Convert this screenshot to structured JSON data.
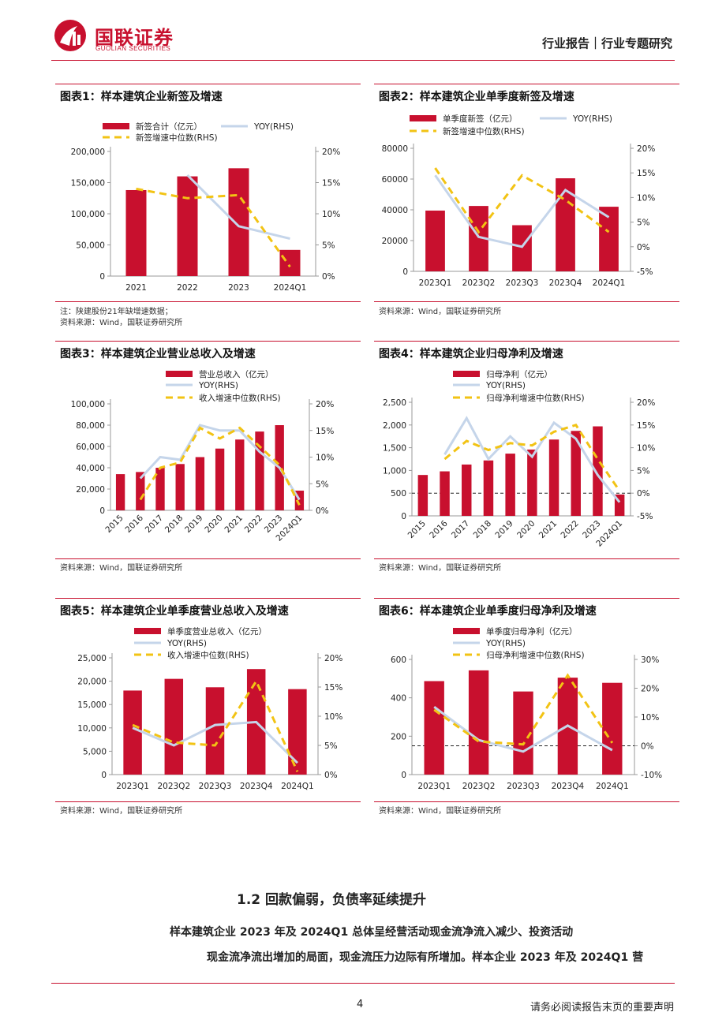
{
  "header": {
    "company_cn": "国联证券",
    "company_en": "GUOLIAN SECURITIES",
    "report_type": "行业报告｜行业专题研究",
    "colors": {
      "brand_red": "#c8102e"
    }
  },
  "charts": [
    {
      "id": "chart1",
      "title": "图表1：样本建筑企业新签及增速",
      "notes": [
        "注：陕建股份21年缺增速数据；",
        "资料来源：Wind，国联证券研究所"
      ]
    },
    {
      "id": "chart2",
      "title": "图表2：样本建筑企业单季度新签及增速",
      "notes": [
        "资料来源：Wind，国联证券研究所"
      ]
    },
    {
      "id": "chart3",
      "title": "图表3：样本建筑企业营业总收入及增速",
      "notes": [
        "资料来源：Wind，国联证券研究所"
      ]
    },
    {
      "id": "chart4",
      "title": "图表4：样本建筑企业归母净利及增速",
      "notes": [
        "资料来源：Wind，国联证券研究所"
      ]
    },
    {
      "id": "chart5",
      "title": "图表5：样本建筑企业单季度营业总收入及增速",
      "notes": [
        "资料来源：Wind，国联证券研究所"
      ]
    },
    {
      "id": "chart6",
      "title": "图表6：样本建筑企业单季度归母净利及增速",
      "notes": [
        "资料来源：Wind，国联证券研究所"
      ]
    }
  ],
  "chart_data": [
    {
      "type": "bar",
      "title": "图表1：样本建筑企业新签及增速",
      "categories": [
        "2021",
        "2022",
        "2023",
        "2024Q1"
      ],
      "left_ticks": [
        "0",
        "50,000",
        "100,000",
        "150,000",
        "200,000"
      ],
      "right_ticks": [
        "0%",
        "5%",
        "10%",
        "15%",
        "20%"
      ],
      "ylim": [
        0,
        200000
      ],
      "y2lim": [
        0,
        20
      ],
      "series": [
        {
          "name": "新签合计（亿元）",
          "kind": "bar",
          "axis": "left",
          "values": [
            138000,
            160000,
            173000,
            42000
          ]
        },
        {
          "name": "YOY(RHS)",
          "kind": "line",
          "axis": "right",
          "values": [
            null,
            16.2,
            8.0,
            6.0
          ]
        },
        {
          "name": "新签增速中位数(RHS)",
          "kind": "dash",
          "axis": "right",
          "values": [
            14.0,
            12.5,
            13.0,
            1.5
          ]
        }
      ]
    },
    {
      "type": "bar",
      "title": "图表2：样本建筑企业单季度新签及增速",
      "categories": [
        "2023Q1",
        "2023Q2",
        "2023Q3",
        "2023Q4",
        "2024Q1"
      ],
      "left_ticks": [
        "0",
        "20000",
        "40000",
        "60000",
        "80000"
      ],
      "right_ticks": [
        "-5%",
        "0%",
        "5%",
        "10%",
        "15%",
        "20%"
      ],
      "ylim": [
        0,
        80000
      ],
      "y2lim": [
        -5,
        20
      ],
      "series": [
        {
          "name": "单季度新签（亿元）",
          "kind": "bar",
          "axis": "left",
          "values": [
            39500,
            42500,
            30000,
            60500,
            42000
          ]
        },
        {
          "name": "YOY(RHS)",
          "kind": "line",
          "axis": "right",
          "values": [
            14.5,
            2.0,
            0.0,
            11.5,
            6.0
          ]
        },
        {
          "name": "新签增速中位数(RHS)",
          "kind": "dash",
          "axis": "right",
          "values": [
            16.0,
            3.0,
            14.5,
            9.5,
            3.0
          ]
        }
      ]
    },
    {
      "type": "bar",
      "title": "图表3：样本建筑企业营业总收入及增速",
      "categories": [
        "2015",
        "2016",
        "2017",
        "2018",
        "2019",
        "2020",
        "2021",
        "2022",
        "2023",
        "2024Q1"
      ],
      "left_ticks": [
        "0",
        "20,000",
        "40,000",
        "60,000",
        "80,000",
        "100,000"
      ],
      "right_ticks": [
        "0%",
        "5%",
        "10%",
        "15%",
        "20%"
      ],
      "ylim": [
        0,
        100000
      ],
      "y2lim": [
        0,
        20
      ],
      "series": [
        {
          "name": "营业总收入（亿元）",
          "kind": "bar",
          "axis": "left",
          "values": [
            34000,
            36000,
            40000,
            43500,
            50000,
            58000,
            66500,
            74000,
            80000,
            18500
          ]
        },
        {
          "name": "YOY(RHS)",
          "kind": "line",
          "axis": "right",
          "values": [
            null,
            6.0,
            10.0,
            9.5,
            16.0,
            15.0,
            15.0,
            11.0,
            8.0,
            2.0
          ]
        },
        {
          "name": "收入增速中位数(RHS)",
          "kind": "dash",
          "axis": "right",
          "values": [
            null,
            2.0,
            8.0,
            9.0,
            15.5,
            13.5,
            15.5,
            12.0,
            8.5,
            1.0
          ]
        }
      ]
    },
    {
      "type": "bar",
      "title": "图表4：样本建筑企业归母净利及增速",
      "categories": [
        "2015",
        "2016",
        "2017",
        "2018",
        "2019",
        "2020",
        "2021",
        "2022",
        "2023",
        "2024Q1"
      ],
      "left_ticks": [
        "0",
        "500",
        "1,000",
        "1,500",
        "2,000",
        "2,500"
      ],
      "right_ticks": [
        "-5%",
        "0%",
        "5%",
        "10%",
        "15%",
        "20%"
      ],
      "ylim": [
        0,
        2500
      ],
      "y2lim": [
        -5,
        20
      ],
      "series": [
        {
          "name": "归母净利（亿元）",
          "kind": "bar",
          "axis": "left",
          "values": [
            900,
            980,
            1130,
            1220,
            1370,
            1460,
            1680,
            1870,
            1970,
            470
          ]
        },
        {
          "name": "YOY(RHS)",
          "kind": "line",
          "axis": "right",
          "values": [
            null,
            8.5,
            16.5,
            7.5,
            12.5,
            8.0,
            15.5,
            12.0,
            4.0,
            -2.0
          ]
        },
        {
          "name": "归母净利增速中位数(RHS)",
          "kind": "dash",
          "axis": "right",
          "values": [
            null,
            7.5,
            11.5,
            9.5,
            11.0,
            10.5,
            13.5,
            15.0,
            7.5,
            0.5
          ]
        }
      ],
      "reference_line": "0%"
    },
    {
      "type": "bar",
      "title": "图表5：样本建筑企业单季度营业总收入及增速",
      "categories": [
        "2023Q1",
        "2023Q2",
        "2023Q3",
        "2023Q4",
        "2024Q1"
      ],
      "left_ticks": [
        "0",
        "5,000",
        "10,000",
        "15,000",
        "20,000",
        "25,000"
      ],
      "right_ticks": [
        "0%",
        "5%",
        "10%",
        "15%",
        "20%"
      ],
      "ylim": [
        0,
        25000
      ],
      "y2lim": [
        0,
        20
      ],
      "series": [
        {
          "name": "单季度营业总收入（亿元）",
          "kind": "bar",
          "axis": "left",
          "values": [
            18000,
            20500,
            18700,
            22600,
            18300
          ]
        },
        {
          "name": "YOY(RHS)",
          "kind": "line",
          "axis": "right",
          "values": [
            8.0,
            5.0,
            8.5,
            9.0,
            2.0
          ]
        },
        {
          "name": "收入增速中位数(RHS)",
          "kind": "dash",
          "axis": "right",
          "values": [
            8.5,
            5.5,
            5.0,
            16.0,
            0.5
          ]
        }
      ]
    },
    {
      "type": "bar",
      "title": "图表6：样本建筑企业单季度归母净利及增速",
      "categories": [
        "2023Q1",
        "2023Q2",
        "2023Q3",
        "2023Q4",
        "2024Q1"
      ],
      "left_ticks": [
        "0",
        "200",
        "400",
        "600"
      ],
      "right_ticks": [
        "-10%",
        "0%",
        "10%",
        "20%",
        "30%"
      ],
      "ylim": [
        0,
        600
      ],
      "y2lim": [
        -10,
        30
      ],
      "series": [
        {
          "name": "单季度归母净利（亿元）",
          "kind": "bar",
          "axis": "left",
          "values": [
            487,
            543,
            433,
            505,
            478
          ]
        },
        {
          "name": "YOY(RHS)",
          "kind": "line",
          "axis": "right",
          "values": [
            13.5,
            2.0,
            -2.0,
            7.0,
            -1.5
          ]
        },
        {
          "name": "归母净利增速中位数(RHS)",
          "kind": "dash",
          "axis": "right",
          "values": [
            12.5,
            1.5,
            0.5,
            24.5,
            1.0
          ]
        }
      ],
      "reference_line": "0%"
    }
  ],
  "section": {
    "title": "1.2 回款偏弱，负债率延续提升",
    "paragraph_line1": "样本建筑企业 2023 年及 2024Q1 总体呈经营活动现金流净流入减少、投资活动",
    "paragraph_line2": "现金流净流出增加的局面，现金流压力边际有所增加。样本企业 2023 年及 2024Q1 营"
  },
  "footer": {
    "page_number": "4",
    "disclaimer": "请务必阅读报告末页的重要声明"
  }
}
